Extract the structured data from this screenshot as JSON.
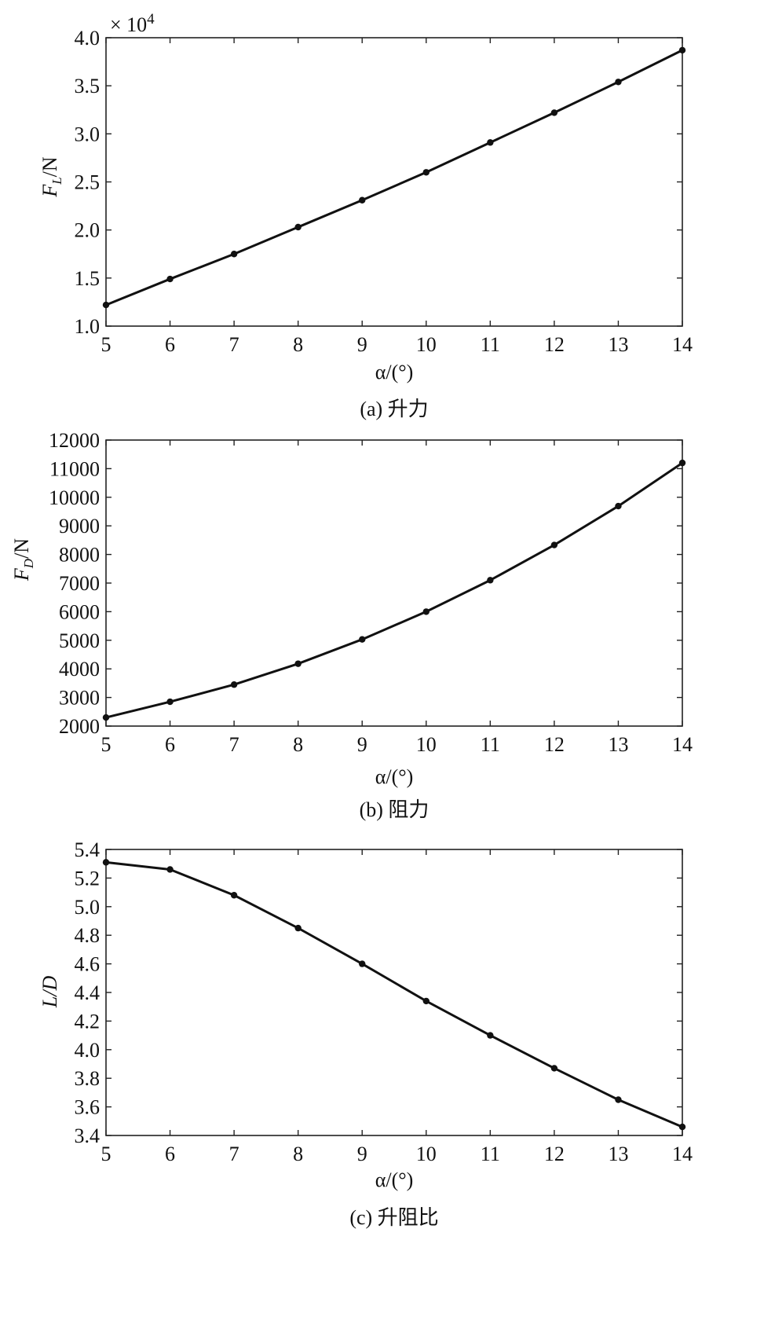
{
  "chart_data": [
    {
      "type": "line",
      "caption": "(a) 升力",
      "xlabel": "α/(°)",
      "ylabel": "F_L/N",
      "ylabel_main": "F",
      "ylabel_sub": "L",
      "ylabel_tail": "/N",
      "multiplier": "× 10",
      "multiplier_exp": "4",
      "xlim": [
        5,
        14
      ],
      "ylim": [
        1.0,
        4.0
      ],
      "x": [
        5,
        6,
        7,
        8,
        9,
        10,
        11,
        12,
        13,
        14
      ],
      "values": [
        1.22,
        1.49,
        1.75,
        2.03,
        2.31,
        2.6,
        2.91,
        3.22,
        3.54,
        3.87
      ],
      "xticks": [
        "5",
        "6",
        "7",
        "8",
        "9",
        "10",
        "11",
        "12",
        "13",
        "14"
      ],
      "yticks": [
        "1.0",
        "1.5",
        "2.0",
        "2.5",
        "3.0",
        "3.5",
        "4.0"
      ],
      "grid": false
    },
    {
      "type": "line",
      "caption": "(b) 阻力",
      "xlabel": "α/(°)",
      "ylabel": "F_D/N",
      "ylabel_main": "F",
      "ylabel_sub": "D",
      "ylabel_tail": "/N",
      "xlim": [
        5,
        14
      ],
      "ylim": [
        2000,
        12000
      ],
      "x": [
        5,
        6,
        7,
        8,
        9,
        10,
        11,
        12,
        13,
        14
      ],
      "values": [
        2300,
        2850,
        3450,
        4180,
        5030,
        6000,
        7100,
        8330,
        9690,
        11200
      ],
      "xticks": [
        "5",
        "6",
        "7",
        "8",
        "9",
        "10",
        "11",
        "12",
        "13",
        "14"
      ],
      "yticks": [
        "2000",
        "3000",
        "4000",
        "5000",
        "6000",
        "7000",
        "8000",
        "9000",
        "10000",
        "11000",
        "12000"
      ],
      "grid": false
    },
    {
      "type": "line",
      "caption": "(c) 升阻比",
      "xlabel": "α/(°)",
      "ylabel": "L/D",
      "xlim": [
        5,
        14
      ],
      "ylim": [
        3.4,
        5.4
      ],
      "x": [
        5,
        6,
        7,
        8,
        9,
        10,
        11,
        12,
        13,
        14
      ],
      "values": [
        5.31,
        5.26,
        5.08,
        4.85,
        4.6,
        4.34,
        4.1,
        3.87,
        3.65,
        3.46
      ],
      "xticks": [
        "5",
        "6",
        "7",
        "8",
        "9",
        "10",
        "11",
        "12",
        "13",
        "14"
      ],
      "yticks": [
        "3.4",
        "3.6",
        "3.8",
        "4.0",
        "4.2",
        "4.4",
        "4.6",
        "4.8",
        "5.0",
        "5.2",
        "5.4"
      ],
      "grid": false
    }
  ]
}
